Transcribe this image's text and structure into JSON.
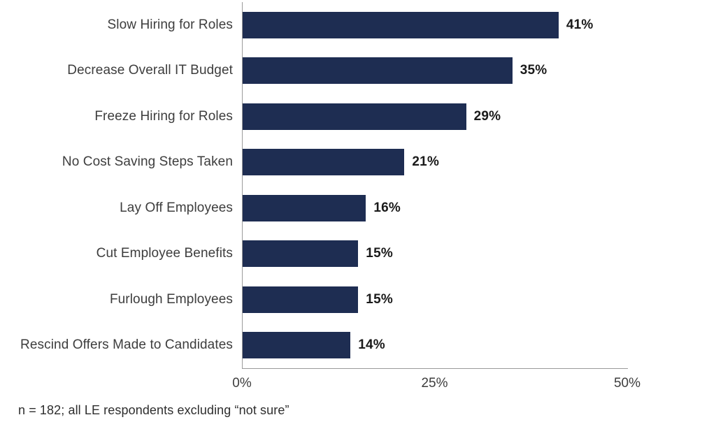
{
  "chart_data": {
    "type": "bar",
    "orientation": "horizontal",
    "categories": [
      "Slow Hiring for Roles",
      "Decrease Overall IT Budget",
      "Freeze Hiring for Roles",
      "No Cost Saving Steps Taken",
      "Lay Off Employees",
      "Cut Employee Benefits",
      "Furlough Employees",
      "Rescind Offers Made to Candidates"
    ],
    "values": [
      41,
      35,
      29,
      21,
      16,
      15,
      15,
      14
    ],
    "value_labels": [
      "41%",
      "35%",
      "29%",
      "21%",
      "16%",
      "15%",
      "15%",
      "14%"
    ],
    "title": "",
    "xlabel": "",
    "ylabel": "",
    "x_ticks": [
      "0%",
      "25%",
      "50%"
    ],
    "x_tick_values": [
      0,
      25,
      50
    ],
    "xlim": [
      0,
      50
    ],
    "grid": false,
    "legend": "none",
    "bar_color": "#1e2d52",
    "axis_line_color": "#9a9a9a",
    "label_color": "#3d3d3d",
    "value_label_color": "#1a1a1a"
  },
  "footnote": "n = 182; all LE respondents excluding “not sure”"
}
